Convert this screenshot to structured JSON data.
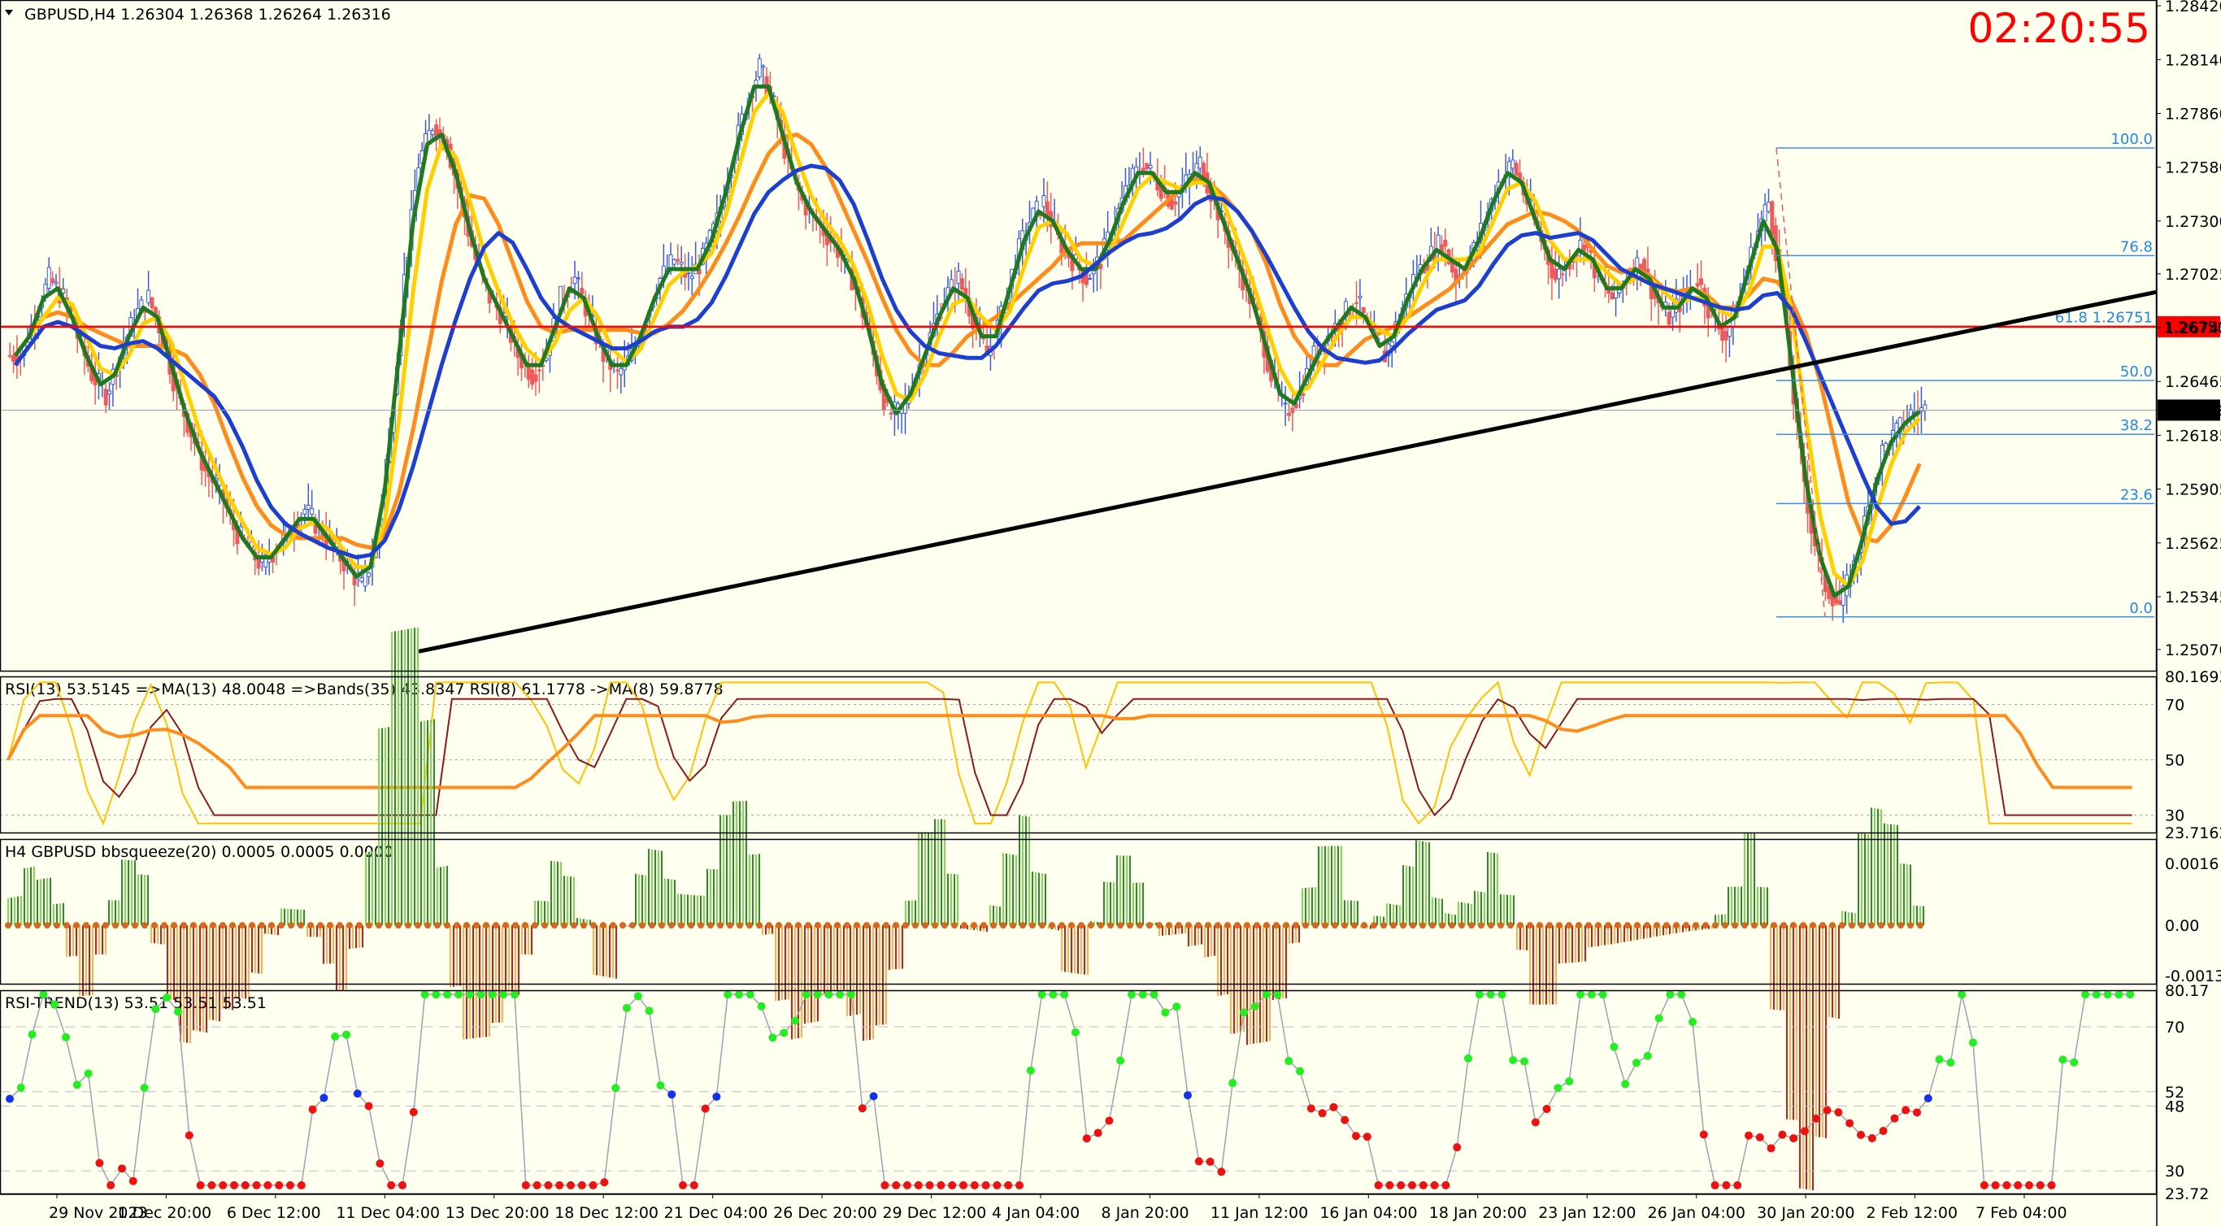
{
  "chart_data": [
    {
      "type": "candlestick",
      "header": {
        "symbol_tf": "GBPUSD,H4",
        "open": "1.26304",
        "high": "1.26368",
        "low": "1.26264",
        "close": "1.26316"
      },
      "timer": "02:20:55",
      "y_axis": {
        "ticks": [
          "1.28420",
          "1.28140",
          "1.27860",
          "1.27580",
          "1.27300",
          "1.27025",
          "1.26745",
          "1.26465",
          "1.26185",
          "1.25905",
          "1.25625",
          "1.25345",
          "1.25070"
        ],
        "range": [
          1.2496,
          1.2845
        ]
      },
      "current_price": "1.26316",
      "horizontal_line": {
        "price": 1.2675,
        "label": "1.26750",
        "color": "#ff0000"
      },
      "fibonacci": [
        {
          "level": "100.0",
          "price": 1.2768
        },
        {
          "level": "76.8",
          "price": 1.2712
        },
        {
          "level": "61.8  1.26751",
          "price": 1.26751
        },
        {
          "level": "50.0",
          "price": 1.2647
        },
        {
          "level": "38.2",
          "price": 1.2619
        },
        {
          "level": "23.6",
          "price": 1.2583
        },
        {
          "level": "0.0",
          "price": 1.2524
        }
      ],
      "trendline": {
        "from": [
          1.2506
        ],
        "to": [
          1.2693
        ]
      },
      "x_ticks": [
        "29 Nov 2023",
        "1 Dec 20:00",
        "6 Dec 12:00",
        "11 Dec 04:00",
        "13 Dec 20:00",
        "18 Dec 12:00",
        "21 Dec 04:00",
        "26 Dec 20:00",
        "29 Dec 12:00",
        "4 Jan 04:00",
        "8 Jan 20:00",
        "11 Jan 12:00",
        "16 Jan 04:00",
        "18 Jan 20:00",
        "23 Jan 12:00",
        "26 Jan 04:00",
        "30 Jan 20:00",
        "2 Feb 12:00",
        "7 Feb 04:00"
      ],
      "close_series": [
        1.266,
        1.268,
        1.27,
        1.269,
        1.267,
        1.265,
        1.264,
        1.266,
        1.268,
        1.269,
        1.267,
        1.264,
        1.262,
        1.26,
        1.259,
        1.257,
        1.256,
        1.255,
        1.256,
        1.257,
        1.258,
        1.257,
        1.256,
        1.255,
        1.254,
        1.256,
        1.262,
        1.27,
        1.276,
        1.278,
        1.277,
        1.274,
        1.271,
        1.269,
        1.268,
        1.266,
        1.265,
        1.266,
        1.269,
        1.27,
        1.268,
        1.266,
        1.265,
        1.266,
        1.268,
        1.27,
        1.271,
        1.27,
        1.271,
        1.273,
        1.276,
        1.279,
        1.281,
        1.279,
        1.276,
        1.274,
        1.273,
        1.272,
        1.271,
        1.269,
        1.266,
        1.263,
        1.263,
        1.265,
        1.267,
        1.269,
        1.27,
        1.268,
        1.266,
        1.268,
        1.271,
        1.273,
        1.274,
        1.272,
        1.271,
        1.27,
        1.271,
        1.273,
        1.275,
        1.276,
        1.275,
        1.274,
        1.275,
        1.276,
        1.274,
        1.272,
        1.27,
        1.268,
        1.265,
        1.263,
        1.264,
        1.266,
        1.267,
        1.268,
        1.269,
        1.267,
        1.266,
        1.268,
        1.27,
        1.271,
        1.272,
        1.27,
        1.271,
        1.273,
        1.275,
        1.276,
        1.274,
        1.272,
        1.27,
        1.271,
        1.272,
        1.27,
        1.269,
        1.27,
        1.271,
        1.269,
        1.268,
        1.269,
        1.27,
        1.268,
        1.267,
        1.269,
        1.272,
        1.274,
        1.269,
        1.262,
        1.257,
        1.254,
        1.253,
        1.255,
        1.258,
        1.261,
        1.262,
        1.263,
        1.2632
      ],
      "panels": [
        {
          "label": "RSI(13) 53.5145  =>MA(13) 48.0048  =>Bands(35) 43.8347  RSI(8) 61.1778  ->MA(8) 59.8778",
          "ticks": [
            "80.1693",
            "70",
            "50",
            "30",
            "23.7162"
          ]
        },
        {
          "label": "H4 GBPUSD bbsqueeze(20) 0.0005 0.0005 0.0000",
          "ticks": [
            "0.0016",
            "0.00",
            "-0.0013"
          ]
        },
        {
          "label": "RSI-TREND(13) 53.51 53.51 53.51",
          "ticks": [
            "80.17",
            "70",
            "52",
            "48",
            "30",
            "23.72"
          ]
        }
      ]
    }
  ]
}
